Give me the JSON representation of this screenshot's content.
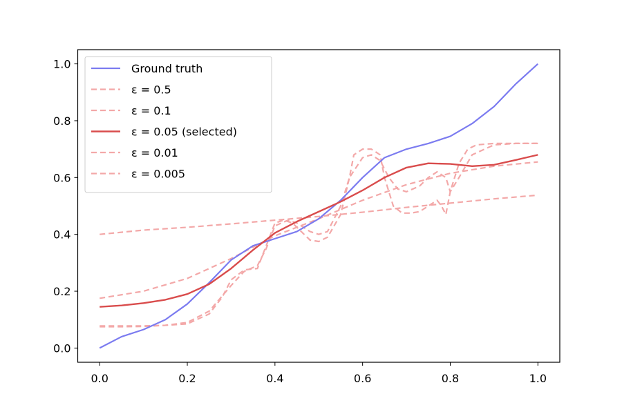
{
  "colors": {
    "ground_truth": "#7b7bf0",
    "selected": "#d94c4c",
    "faded": "#f3a8a8",
    "axis": "#000000",
    "legend_border": "#cccccc"
  },
  "legend": {
    "location": "upper-left",
    "items": [
      {
        "label": "Ground truth",
        "series": "ground_truth"
      },
      {
        "label": "ε = 0.5",
        "series": "eps_0_5"
      },
      {
        "label": "ε = 0.1",
        "series": "eps_0_1"
      },
      {
        "label": "ε = 0.05 (selected)",
        "series": "eps_0_05"
      },
      {
        "label": "ε = 0.01",
        "series": "eps_0_01"
      },
      {
        "label": "ε = 0.005",
        "series": "eps_0_005"
      }
    ]
  },
  "chart_data": {
    "type": "line",
    "title": "",
    "xlabel": "",
    "ylabel": "",
    "xlim": [
      -0.05,
      1.05
    ],
    "ylim": [
      -0.05,
      1.05
    ],
    "x_ticks": [
      0.0,
      0.2,
      0.4,
      0.6,
      0.8,
      1.0
    ],
    "y_ticks": [
      0.0,
      0.2,
      0.4,
      0.6,
      0.8,
      1.0
    ],
    "x_tick_labels": [
      "0.0",
      "0.2",
      "0.4",
      "0.6",
      "0.8",
      "1.0"
    ],
    "y_tick_labels": [
      "0.0",
      "0.2",
      "0.4",
      "0.6",
      "0.8",
      "1.0"
    ],
    "grid": false,
    "series": [
      {
        "key": "ground_truth",
        "name": "Ground truth",
        "style": "solid",
        "x": [
          0.0,
          0.05,
          0.1,
          0.15,
          0.2,
          0.25,
          0.3,
          0.35,
          0.4,
          0.45,
          0.5,
          0.55,
          0.6,
          0.65,
          0.7,
          0.75,
          0.8,
          0.85,
          0.9,
          0.95,
          1.0
        ],
        "y": [
          0.0,
          0.04,
          0.065,
          0.1,
          0.155,
          0.23,
          0.31,
          0.36,
          0.385,
          0.41,
          0.455,
          0.52,
          0.6,
          0.67,
          0.7,
          0.72,
          0.745,
          0.79,
          0.85,
          0.93,
          1.0
        ]
      },
      {
        "key": "eps_0_5",
        "name": "ε = 0.5",
        "style": "dashed",
        "x": [
          0.0,
          0.1,
          0.2,
          0.3,
          0.4,
          0.5,
          0.6,
          0.7,
          0.8,
          0.9,
          1.0
        ],
        "y": [
          0.4,
          0.415,
          0.425,
          0.437,
          0.45,
          0.463,
          0.478,
          0.495,
          0.51,
          0.525,
          0.538
        ]
      },
      {
        "key": "eps_0_1",
        "name": "ε = 0.1",
        "style": "dashed",
        "x": [
          0.0,
          0.1,
          0.2,
          0.3,
          0.4,
          0.5,
          0.6,
          0.7,
          0.8,
          0.9,
          1.0
        ],
        "y": [
          0.175,
          0.2,
          0.245,
          0.315,
          0.395,
          0.455,
          0.52,
          0.575,
          0.615,
          0.64,
          0.655
        ]
      },
      {
        "key": "eps_0_05",
        "name": "ε = 0.05 (selected)",
        "style": "solid",
        "x": [
          0.0,
          0.05,
          0.1,
          0.15,
          0.2,
          0.25,
          0.3,
          0.35,
          0.4,
          0.45,
          0.5,
          0.55,
          0.6,
          0.65,
          0.7,
          0.75,
          0.8,
          0.85,
          0.9,
          0.95,
          1.0
        ],
        "y": [
          0.145,
          0.15,
          0.158,
          0.17,
          0.19,
          0.225,
          0.28,
          0.345,
          0.405,
          0.445,
          0.48,
          0.515,
          0.555,
          0.6,
          0.635,
          0.65,
          0.648,
          0.64,
          0.645,
          0.662,
          0.68
        ]
      },
      {
        "key": "eps_0_01",
        "name": "ε = 0.01",
        "style": "dashed",
        "x": [
          0.0,
          0.05,
          0.1,
          0.15,
          0.2,
          0.25,
          0.3,
          0.33,
          0.36,
          0.38,
          0.4,
          0.43,
          0.45,
          0.48,
          0.5,
          0.52,
          0.55,
          0.57,
          0.6,
          0.62,
          0.64,
          0.66,
          0.68,
          0.7,
          0.73,
          0.75,
          0.77,
          0.79,
          0.8,
          0.82,
          0.85,
          0.9,
          0.95,
          1.0
        ],
        "y": [
          0.075,
          0.075,
          0.076,
          0.08,
          0.09,
          0.13,
          0.22,
          0.27,
          0.29,
          0.35,
          0.43,
          0.45,
          0.44,
          0.41,
          0.4,
          0.41,
          0.5,
          0.6,
          0.67,
          0.68,
          0.66,
          0.6,
          0.56,
          0.55,
          0.57,
          0.6,
          0.62,
          0.6,
          0.55,
          0.6,
          0.68,
          0.715,
          0.72,
          0.72
        ]
      },
      {
        "key": "eps_0_005",
        "name": "ε = 0.005",
        "style": "dashed",
        "x": [
          0.0,
          0.05,
          0.1,
          0.15,
          0.2,
          0.25,
          0.28,
          0.3,
          0.33,
          0.36,
          0.38,
          0.4,
          0.42,
          0.44,
          0.46,
          0.48,
          0.5,
          0.52,
          0.55,
          0.57,
          0.58,
          0.6,
          0.62,
          0.64,
          0.65,
          0.67,
          0.69,
          0.71,
          0.73,
          0.75,
          0.77,
          0.78,
          0.79,
          0.8,
          0.82,
          0.84,
          0.86,
          0.9,
          0.95,
          1.0
        ],
        "y": [
          0.078,
          0.078,
          0.078,
          0.08,
          0.085,
          0.12,
          0.18,
          0.24,
          0.275,
          0.28,
          0.36,
          0.44,
          0.45,
          0.44,
          0.41,
          0.38,
          0.375,
          0.39,
          0.47,
          0.6,
          0.68,
          0.7,
          0.7,
          0.68,
          0.6,
          0.5,
          0.475,
          0.475,
          0.48,
          0.5,
          0.52,
          0.5,
          0.47,
          0.55,
          0.65,
          0.7,
          0.715,
          0.72,
          0.72,
          0.72
        ]
      }
    ]
  }
}
